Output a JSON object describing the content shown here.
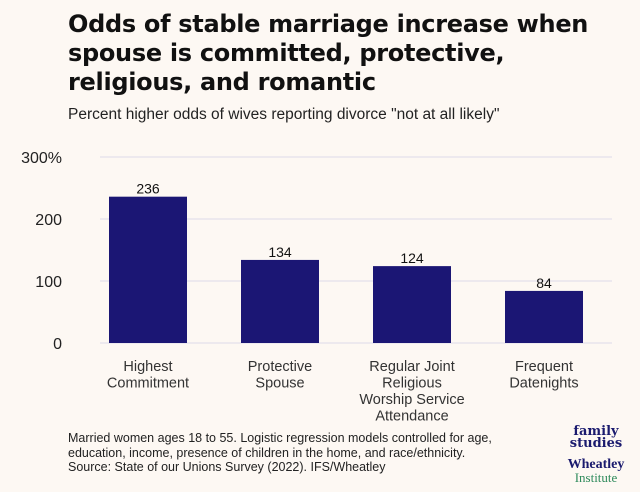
{
  "header": {
    "title": "Odds of stable marriage increase when spouse is committed, protective, religious, and romantic",
    "subtitle": "Percent higher odds of wives reporting divorce \"not at all likely\""
  },
  "footnote": {
    "line1": "Married women ages 18 to 55. Logistic regression models controlled for age,",
    "line2": "education, income, presence of children in the home, and race/ethnicity.",
    "line3": "Source: State of our Unions Survey (2022). IFS/Wheatley"
  },
  "logos": {
    "family_line1": "family",
    "family_line2": "studies",
    "wheatley_line1": "Wheatley",
    "wheatley_line2": "Institute"
  },
  "colors": {
    "bar": "#1b1674",
    "gridline": "#e4e0ea",
    "background": "#fdf8f3",
    "logo_navy": "#1a1a6e",
    "logo_green": "#2e8a5b"
  },
  "chart_data": {
    "type": "bar",
    "title": "Odds of stable marriage increase when spouse is committed, protective, religious, and romantic",
    "subtitle": "Percent higher odds of wives reporting divorce \"not at all likely\"",
    "categories": [
      [
        "Highest",
        "Commitment"
      ],
      [
        "Protective",
        "Spouse"
      ],
      [
        "Regular Joint",
        "Religious",
        "Worship Service",
        "Attendance"
      ],
      [
        "Frequent",
        "Datenights"
      ]
    ],
    "values": [
      236,
      134,
      124,
      84
    ],
    "data_labels": [
      "236",
      "134",
      "124",
      "84"
    ],
    "ylim": [
      0,
      300
    ],
    "yticks": [
      0,
      100,
      200,
      300
    ],
    "ytick_labels": [
      "0",
      "100",
      "200",
      "300%"
    ],
    "xlabel": "",
    "ylabel": "",
    "grid": true
  }
}
